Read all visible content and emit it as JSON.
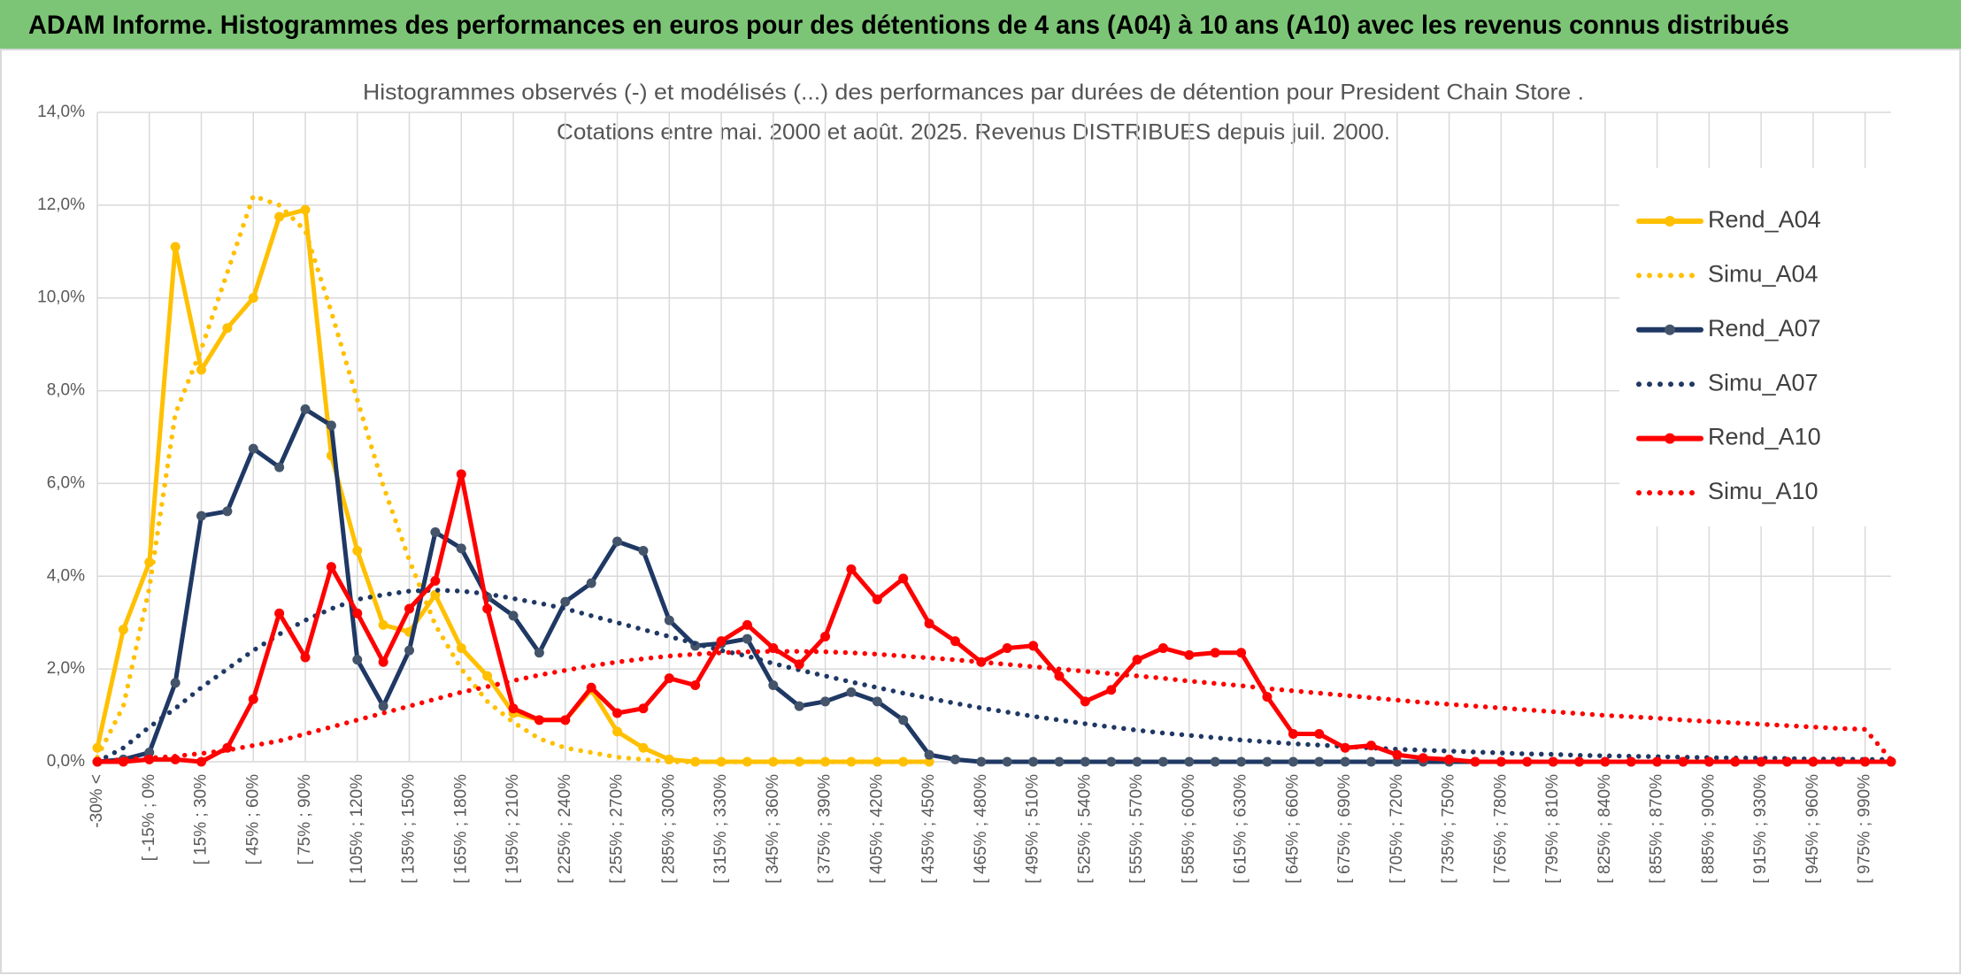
{
  "chart_data": {
    "type": "line",
    "title": "ADAM Informe. Histogrammes des performances en euros pour des détentions de 4 ans (A04) à 10 ans (A10) avec les revenus connus distribués",
    "subtitle": [
      "Histogrammes observés (-) et modélisés (...) des performances par durées de détention pour President Chain Store .",
      "Cotations entre mai. 2000 et août. 2025. Revenus DISTRIBUES depuis juil. 2000."
    ],
    "categories": [
      "-30% <",
      null,
      "[ -15% ; 0%",
      null,
      "[ 15% ; 30%",
      null,
      "[ 45% ; 60%",
      null,
      "[ 75% ; 90%",
      null,
      "[ 105% ; 120%",
      null,
      "[ 135% ; 150%",
      null,
      "[ 165% ; 180%",
      null,
      "[ 195% ; 210%",
      null,
      "[ 225% ; 240%",
      null,
      "[ 255% ; 270%",
      null,
      "[ 285% ; 300%",
      null,
      "[ 315% ; 330%",
      null,
      "[ 345% ; 360%",
      null,
      "[ 375% ; 390%",
      null,
      "[ 405% ; 420%",
      null,
      "[ 435% ; 450%",
      null,
      "[ 465% ; 480%",
      null,
      "[ 495% ; 510%",
      null,
      "[ 525% ; 540%",
      null,
      "[ 555% ; 570%",
      null,
      "[ 585% ; 600%",
      null,
      "[ 615% ; 630%",
      null,
      "[ 645% ; 660%",
      null,
      "[ 675% ; 690%",
      null,
      "[ 705% ; 720%",
      null,
      "[ 735% ; 750%",
      null,
      "[ 765% ; 780%",
      null,
      "[ 795% ; 810%",
      null,
      "[ 825% ; 840%",
      null,
      "[ 855% ; 870%",
      null,
      "[ 885% ; 900%",
      null,
      "[ 915% ; 930%",
      null,
      "[ 945% ; 960%",
      null,
      "[ 975% ; 990%",
      null
    ],
    "series": [
      {
        "name": "Rend_A04",
        "color": "#FFC000",
        "style": "solid",
        "markers": true,
        "values": [
          0.3,
          2.85,
          4.3,
          11.1,
          8.45,
          9.35,
          10,
          11.75,
          11.9,
          6.6,
          4.55,
          2.95,
          2.8,
          3.6,
          2.45,
          1.85,
          1.05,
          0.9,
          0.9,
          1.55,
          0.65,
          0.3,
          0.05,
          0,
          0,
          0,
          0,
          0,
          0,
          0,
          0,
          0,
          0,
          null,
          null,
          null,
          null,
          null,
          null,
          null,
          null,
          null,
          null,
          null,
          null,
          null,
          null,
          null,
          null,
          null,
          null,
          null,
          null,
          null,
          null,
          null,
          null,
          null,
          null,
          null,
          null,
          null,
          null,
          null,
          null,
          null,
          null,
          null,
          null,
          null
        ]
      },
      {
        "name": "Simu_A04",
        "color": "#FFC000",
        "style": "dotted",
        "markers": false,
        "values": [
          0.1,
          1.2,
          3.75,
          7.5,
          8.9,
          10.55,
          12.2,
          12,
          11.45,
          9.7,
          7.8,
          5.95,
          4.35,
          2.95,
          2,
          1.3,
          0.85,
          0.5,
          0.3,
          0.2,
          0.1,
          0.05,
          0,
          0,
          0,
          0,
          0,
          0,
          0,
          0,
          0,
          0,
          0,
          null,
          null,
          null,
          null,
          null,
          null,
          null,
          null,
          null,
          null,
          null,
          null,
          null,
          null,
          null,
          null,
          null,
          null,
          null,
          null,
          null,
          null,
          null,
          null,
          null,
          null,
          null,
          null,
          null,
          null,
          null,
          null,
          null,
          null,
          null,
          null,
          null
        ]
      },
      {
        "name": "Rend_A07",
        "color": "#1F3864",
        "style": "solid",
        "markers": true,
        "values": [
          0,
          0.05,
          0.2,
          1.7,
          5.3,
          5.4,
          6.75,
          6.35,
          7.6,
          7.25,
          2.2,
          1.2,
          2.4,
          4.95,
          4.6,
          3.55,
          3.15,
          2.35,
          3.45,
          3.85,
          4.75,
          4.55,
          3.05,
          2.5,
          2.55,
          2.65,
          1.65,
          1.2,
          1.3,
          1.5,
          1.3,
          0.9,
          0.15,
          0.05,
          0,
          0,
          0,
          0,
          0,
          0,
          0,
          0,
          0,
          0,
          0,
          0,
          0,
          0,
          0,
          0,
          0,
          0,
          0,
          0,
          0,
          0,
          0,
          0,
          0,
          0,
          0,
          0,
          0,
          0,
          0,
          0,
          0,
          0,
          0,
          0
        ]
      },
      {
        "name": "Simu_A07",
        "color": "#1F3864",
        "style": "dotted",
        "markers": false,
        "values": [
          0,
          0.3,
          0.75,
          1.15,
          1.6,
          2,
          2.4,
          2.75,
          3.05,
          3.3,
          3.5,
          3.6,
          3.68,
          3.7,
          3.68,
          3.62,
          3.52,
          3.42,
          3.3,
          3.15,
          3,
          2.85,
          2.7,
          2.55,
          2.4,
          2.28,
          2.12,
          1.98,
          1.85,
          1.72,
          1.6,
          1.48,
          1.37,
          1.26,
          1.16,
          1.07,
          0.98,
          0.9,
          0.82,
          0.75,
          0.68,
          0.62,
          0.57,
          0.52,
          0.47,
          0.43,
          0.39,
          0.36,
          0.33,
          0.3,
          0.27,
          0.25,
          0.23,
          0.21,
          0.19,
          0.17,
          0.16,
          0.14,
          0.13,
          0.12,
          0.11,
          0.1,
          0.09,
          0.08,
          0.08,
          0.07,
          0.06,
          0.06,
          0.05,
          0.05
        ]
      },
      {
        "name": "Rend_A10",
        "color": "#FF0000",
        "style": "solid",
        "markers": true,
        "values": [
          0,
          0,
          0.05,
          0.05,
          0,
          0.3,
          1.35,
          3.2,
          2.25,
          4.2,
          3.2,
          2.15,
          3.3,
          3.9,
          6.2,
          3.3,
          1.15,
          0.9,
          0.9,
          1.6,
          1.05,
          1.15,
          1.8,
          1.65,
          2.6,
          2.95,
          2.45,
          2.1,
          2.7,
          4.15,
          3.5,
          3.95,
          2.98,
          2.6,
          2.15,
          2.45,
          2.5,
          1.85,
          1.3,
          1.55,
          2.2,
          2.45,
          2.3,
          2.35,
          2.35,
          1.4,
          0.6,
          0.6,
          0.3,
          0.35,
          0.15,
          0.08,
          0.05,
          0,
          0,
          0,
          0,
          0,
          0,
          0,
          0,
          0,
          0,
          0,
          0,
          0,
          0,
          0,
          0,
          0
        ]
      },
      {
        "name": "Simu_A10",
        "color": "#FF0000",
        "style": "dotted",
        "markers": false,
        "values": [
          0,
          0.05,
          0.08,
          0.12,
          0.18,
          0.25,
          0.35,
          0.45,
          0.6,
          0.75,
          0.9,
          1.05,
          1.2,
          1.35,
          1.5,
          1.62,
          1.75,
          1.87,
          1.97,
          2.07,
          2.15,
          2.22,
          2.28,
          2.32,
          2.35,
          2.37,
          2.38,
          2.38,
          2.37,
          2.35,
          2.32,
          2.28,
          2.24,
          2.2,
          2.15,
          2.1,
          2.05,
          2,
          1.95,
          1.9,
          1.85,
          1.8,
          1.74,
          1.69,
          1.64,
          1.58,
          1.53,
          1.48,
          1.43,
          1.38,
          1.33,
          1.28,
          1.24,
          1.2,
          1.16,
          1.12,
          1.08,
          1.04,
          1,
          0.97,
          0.94,
          0.9,
          0.87,
          0.84,
          0.81,
          0.78,
          0.75,
          0.72,
          0.7,
          0.05
        ]
      }
    ],
    "ylim": [
      0,
      14
    ],
    "yticks": [
      {
        "value": 0,
        "label": "0,0%"
      },
      {
        "value": 2,
        "label": "2,0%"
      },
      {
        "value": 4,
        "label": "4,0%"
      },
      {
        "value": 6,
        "label": "6,0%"
      },
      {
        "value": 8,
        "label": "8,0%"
      },
      {
        "value": 10,
        "label": "10,0%"
      },
      {
        "value": 12,
        "label": "12,0%"
      },
      {
        "value": 14,
        "label": "14,0%"
      }
    ],
    "grid": true,
    "legend": "right"
  }
}
